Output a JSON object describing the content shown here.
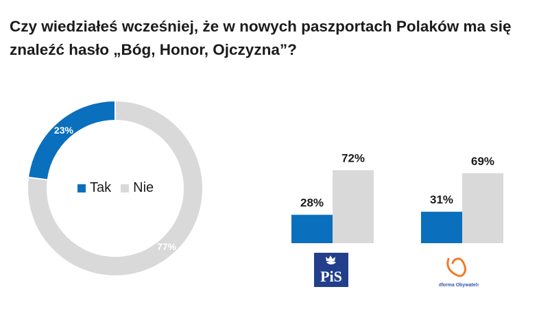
{
  "title": "Czy wiedziałeś wcześniej, że w nowych paszportach Polaków ma się znaleźć hasło „Bóg, Honor, Ojczyzna”?",
  "colors": {
    "tak": "#0a6fbd",
    "nie": "#d9d9d9"
  },
  "legend": [
    {
      "label": "Tak",
      "color": "#0a6fbd"
    },
    {
      "label": "Nie",
      "color": "#d9d9d9"
    }
  ],
  "chart_data": [
    {
      "type": "pie",
      "variant": "donut",
      "categories": [
        "Tak",
        "Nie"
      ],
      "values": [
        23,
        77
      ],
      "labels": [
        "23%",
        "77%"
      ],
      "legend_position": "center"
    },
    {
      "type": "bar",
      "categories": [
        "PiS",
        "Platforma Obywatelska"
      ],
      "series": [
        {
          "name": "Tak",
          "values": [
            28,
            31
          ],
          "labels": [
            "28%",
            "31%"
          ]
        },
        {
          "name": "Nie",
          "values": [
            72,
            69
          ],
          "labels": [
            "72%",
            "69%"
          ]
        }
      ],
      "ylim": [
        0,
        100
      ],
      "grid": false
    }
  ],
  "logos": {
    "pis": {
      "text": "PiS",
      "icon": "eagle-crown-icon"
    },
    "po": {
      "text": "Platforma Obywatelska",
      "icon": "po-heart-icon"
    }
  }
}
